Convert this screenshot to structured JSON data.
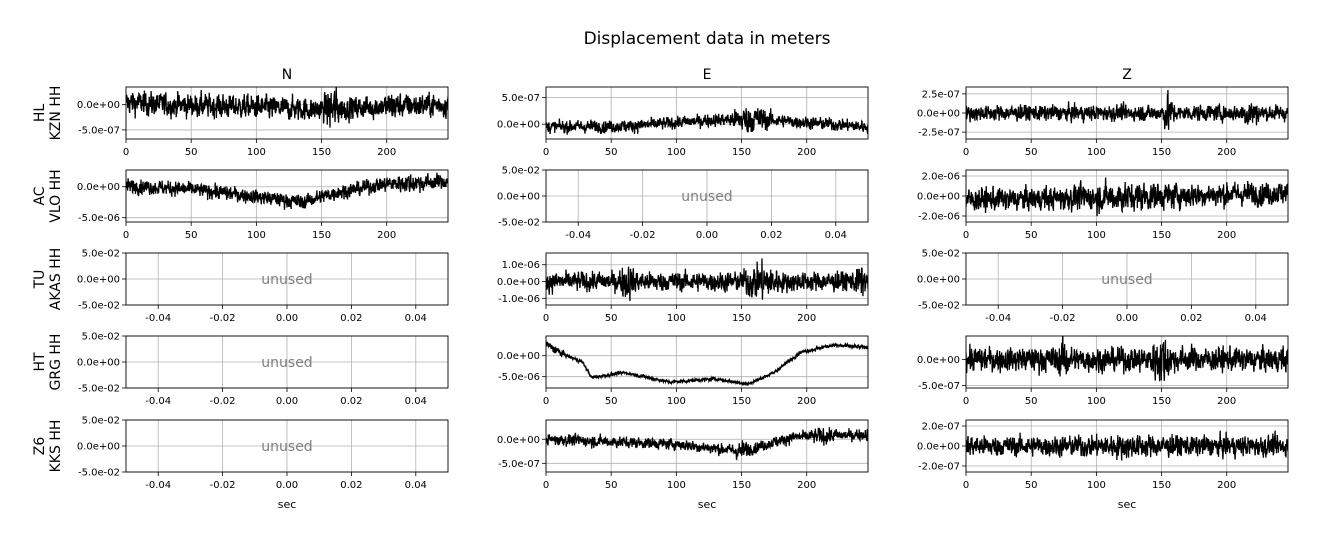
{
  "chart_data": {
    "type": "line",
    "title": "Displacement data in meters",
    "column_titles": [
      "N",
      "E",
      "Z"
    ],
    "row_labels": [
      {
        "network": "HL",
        "station_channel": "KZN HH"
      },
      {
        "network": "AC",
        "station_channel": "VLO HH"
      },
      {
        "network": "TU",
        "station_channel": "AKAS HH"
      },
      {
        "network": "HT",
        "station_channel": "GRG HH"
      },
      {
        "network": "Z6",
        "station_channel": "KKS HH"
      }
    ],
    "xlabel": "sec",
    "unused_label": "unused",
    "time_ticks": [
      "0",
      "50",
      "100",
      "150",
      "200"
    ],
    "unused_xticks": [
      "-0.04",
      "-0.02",
      "0.00",
      "0.02",
      "0.04"
    ],
    "unused_yticks": [
      "5.0e-02",
      "0.0e+00",
      "-5.0e-02"
    ],
    "unused_xlim": [
      -0.05,
      0.05
    ],
    "unused_ylim": [
      -0.05,
      0.05
    ],
    "grid": true,
    "line_color": "#000000",
    "panels": [
      {
        "row": 0,
        "col": 0,
        "used": true,
        "xlim": [
          0,
          247
        ],
        "ylim": [
          -6.8e-07,
          3.5e-07
        ],
        "yticks": [
          {
            "v": 0,
            "label": "0.0e+00"
          },
          {
            "v": -5e-07,
            "label": "-5.0e-07"
          }
        ],
        "amplitude": 1.6e-07,
        "envelope": [
          [
            0,
            5e-08
          ],
          [
            30,
            0.0
          ],
          [
            100,
            -5e-08
          ],
          [
            150,
            -1e-07
          ],
          [
            200,
            -3e-08
          ],
          [
            247,
            0.0
          ]
        ],
        "bursts": [
          [
            152,
            165,
            2.2
          ],
          [
            195,
            215,
            1.4
          ]
        ]
      },
      {
        "row": 0,
        "col": 1,
        "used": true,
        "xlim": [
          0,
          247
        ],
        "ylim": [
          -2.8e-07,
          7e-07
        ],
        "yticks": [
          {
            "v": 5e-07,
            "label": "5.0e-07"
          },
          {
            "v": 0,
            "label": "0.0e+00"
          }
        ],
        "amplitude": 8e-08,
        "envelope": [
          [
            0,
            -5e-08
          ],
          [
            60,
            -4e-08
          ],
          [
            130,
            8e-08
          ],
          [
            160,
            1e-07
          ],
          [
            247,
            -5e-08
          ]
        ],
        "bursts": [
          [
            140,
            175,
            2.5
          ]
        ]
      },
      {
        "row": 0,
        "col": 2,
        "used": true,
        "xlim": [
          0,
          247
        ],
        "ylim": [
          -3.4e-07,
          3.4e-07
        ],
        "yticks": [
          {
            "v": 2.5e-07,
            "label": "2.5e-07"
          },
          {
            "v": 0,
            "label": "0.0e+00"
          },
          {
            "v": -2.5e-07,
            "label": "-2.5e-07"
          }
        ],
        "amplitude": 7e-08,
        "envelope": [
          [
            0,
            0
          ],
          [
            247,
            0
          ]
        ],
        "bursts": [
          [
            150,
            160,
            2.6
          ],
          [
            210,
            225,
            2.2
          ]
        ]
      },
      {
        "row": 1,
        "col": 0,
        "used": true,
        "xlim": [
          0,
          247
        ],
        "ylim": [
          -5.7e-06,
          2.7e-06
        ],
        "yticks": [
          {
            "v": 0,
            "label": "0.0e+00"
          },
          {
            "v": -5e-06,
            "label": "-5.0e-06"
          }
        ],
        "amplitude": 8e-07,
        "envelope": [
          [
            0,
            2e-07
          ],
          [
            60,
            -6e-07
          ],
          [
            135,
            -2.5e-06
          ],
          [
            160,
            -1e-06
          ],
          [
            200,
            5e-07
          ],
          [
            247,
            8e-07
          ]
        ],
        "bursts": [
          [
            190,
            247,
            1.4
          ]
        ]
      },
      {
        "row": 1,
        "col": 1,
        "used": false
      },
      {
        "row": 1,
        "col": 2,
        "used": true,
        "xlim": [
          0,
          247
        ],
        "ylim": [
          -2.6e-06,
          2.6e-06
        ],
        "yticks": [
          {
            "v": 2e-06,
            "label": "2.0e-06"
          },
          {
            "v": 0,
            "label": "0.0e+00"
          },
          {
            "v": -2e-06,
            "label": "-2.0e-06"
          }
        ],
        "amplitude": 8e-07,
        "envelope": [
          [
            0,
            -4e-07
          ],
          [
            247,
            3e-07
          ]
        ],
        "bursts": [
          [
            0,
            247,
            1.3
          ]
        ]
      },
      {
        "row": 2,
        "col": 0,
        "used": false
      },
      {
        "row": 2,
        "col": 1,
        "used": true,
        "xlim": [
          0,
          247
        ],
        "ylim": [
          -1.4e-06,
          1.7e-06
        ],
        "yticks": [
          {
            "v": 1e-06,
            "label": "1.0e-06"
          },
          {
            "v": 0,
            "label": "0.0e+00"
          },
          {
            "v": -1e-06,
            "label": "-1.0e-06"
          }
        ],
        "amplitude": 4e-07,
        "envelope": [
          [
            0,
            0
          ],
          [
            247,
            0
          ]
        ],
        "bursts": [
          [
            55,
            70,
            2.0
          ],
          [
            150,
            180,
            2.2
          ],
          [
            235,
            247,
            1.8
          ]
        ]
      },
      {
        "row": 2,
        "col": 2,
        "used": false
      },
      {
        "row": 3,
        "col": 0,
        "used": false
      },
      {
        "row": 3,
        "col": 1,
        "used": true,
        "xlim": [
          0,
          247
        ],
        "ylim": [
          -7.7e-06,
          4.7e-06
        ],
        "yticks": [
          {
            "v": 0,
            "label": "0.0e+00"
          },
          {
            "v": -5e-06,
            "label": "-5.0e-06"
          }
        ],
        "amplitude": 2.5e-07,
        "envelope": [
          [
            0,
            2.8e-06
          ],
          [
            12,
            5e-07
          ],
          [
            28,
            -1.5e-06
          ],
          [
            35,
            -5.2e-06
          ],
          [
            60,
            -4e-06
          ],
          [
            95,
            -6.3e-06
          ],
          [
            130,
            -5.5e-06
          ],
          [
            155,
            -6.8e-06
          ],
          [
            175,
            -4e-06
          ],
          [
            195,
            8e-07
          ],
          [
            220,
            2.5e-06
          ],
          [
            247,
            2e-06
          ]
        ],
        "bursts": [
          [
            0,
            15,
            3.0
          ],
          [
            220,
            247,
            1.5
          ]
        ]
      },
      {
        "row": 3,
        "col": 2,
        "used": true,
        "xlim": [
          0,
          247
        ],
        "ylim": [
          -5.5e-07,
          4.5e-07
        ],
        "yticks": [
          {
            "v": 0,
            "label": "0.0e+00"
          },
          {
            "v": -5e-07,
            "label": "-5.0e-07"
          }
        ],
        "amplitude": 1.6e-07,
        "envelope": [
          [
            0,
            0
          ],
          [
            247,
            0
          ]
        ],
        "bursts": [
          [
            70,
            80,
            2.0
          ],
          [
            140,
            160,
            2.2
          ]
        ]
      },
      {
        "row": 4,
        "col": 0,
        "used": false
      },
      {
        "row": 4,
        "col": 1,
        "used": true,
        "xlim": [
          0,
          247
        ],
        "ylim": [
          -6.8e-07,
          4e-07
        ],
        "yticks": [
          {
            "v": 0,
            "label": "0.0e+00"
          },
          {
            "v": -5e-07,
            "label": "-5.0e-07"
          }
        ],
        "amplitude": 8e-08,
        "envelope": [
          [
            0,
            0
          ],
          [
            100,
            -1e-07
          ],
          [
            150,
            -2.5e-07
          ],
          [
            190,
            5e-08
          ],
          [
            247,
            1e-07
          ]
        ],
        "bursts": [
          [
            140,
            160,
            1.8
          ],
          [
            195,
            230,
            1.6
          ]
        ]
      },
      {
        "row": 4,
        "col": 2,
        "used": true,
        "xlim": [
          0,
          247
        ],
        "ylim": [
          -2.6e-07,
          2.6e-07
        ],
        "yticks": [
          {
            "v": 2e-07,
            "label": "2.0e-07"
          },
          {
            "v": 0,
            "label": "0.0e+00"
          },
          {
            "v": -2e-07,
            "label": "-2.0e-07"
          }
        ],
        "amplitude": 7e-08,
        "envelope": [
          [
            0,
            0
          ],
          [
            247,
            0
          ]
        ],
        "bursts": [
          [
            0,
            247,
            1.2
          ]
        ]
      }
    ]
  }
}
